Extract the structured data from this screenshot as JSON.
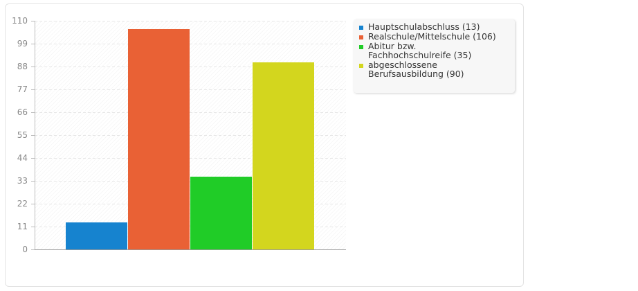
{
  "chart_data": {
    "type": "bar",
    "title": "",
    "xlabel": "",
    "ylabel": "",
    "ylim": [
      0,
      110
    ],
    "yticks": [
      0,
      11,
      22,
      33,
      44,
      55,
      66,
      77,
      88,
      99,
      110
    ],
    "grid": true,
    "legend_position": "right",
    "series": [
      {
        "name": "Hauptschulabschluss",
        "value": 13,
        "legend_label": "Hauptschulabschluss (13)",
        "color": "#1683cf"
      },
      {
        "name": "Realschule/Mittelschule",
        "value": 106,
        "legend_label": "Realschule/Mittelschule (106)",
        "color": "#e96135"
      },
      {
        "name": "Abitur bzw. Fachhochschulreife",
        "value": 35,
        "legend_label": "Abitur bzw.\nFachhochschulreife (35)",
        "color": "#20cc27"
      },
      {
        "name": "abgeschlossene Berufsausbildung",
        "value": 90,
        "legend_label": "abgeschlossene\nBerufsausbildung (90)",
        "color": "#d3d61e"
      }
    ]
  }
}
